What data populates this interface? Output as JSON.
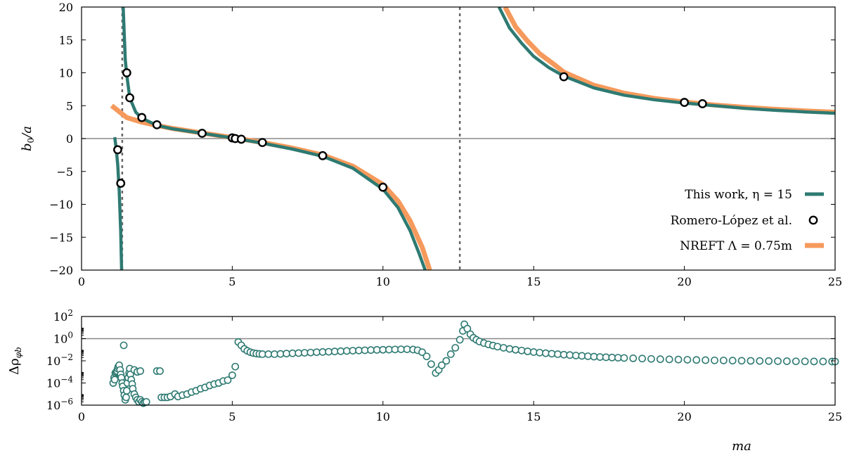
{
  "chart_data": [
    {
      "type": "line",
      "ylabel": "b0/a",
      "xlim": [
        0,
        25
      ],
      "ylim": [
        -20,
        20
      ],
      "xticks": [
        "0",
        "5",
        "10",
        "15",
        "20",
        "25"
      ],
      "yticks": [
        "20",
        "15",
        "10",
        "5",
        "0",
        "−5",
        "−10",
        "−15",
        "−20"
      ],
      "xtick_values": [
        0,
        5,
        10,
        15,
        20,
        25
      ],
      "ytick_values": [
        20,
        15,
        10,
        5,
        0,
        -5,
        -10,
        -15,
        -20
      ],
      "vertical_dashed_lines_x": [
        1.35,
        12.55
      ],
      "horizontal_line_y": 0,
      "legend_position": "bottom-right",
      "series": [
        {
          "name": "This work, η = 15",
          "style": "line",
          "color": "#2e7a72",
          "segments": [
            {
              "x": [
                1.1,
                1.15,
                1.2,
                1.25,
                1.3,
                1.33
              ],
              "y": [
                0.2,
                -1.5,
                -4.0,
                -8.0,
                -14.0,
                -20.0
              ]
            },
            {
              "x": [
                1.38,
                1.45,
                1.5,
                1.6,
                1.8,
                2.0,
                2.5,
                3.0,
                4.0,
                5.0,
                6.0,
                7.0,
                8.0,
                9.0,
                10.0,
                10.5,
                10.9,
                11.2,
                11.4
              ],
              "y": [
                20.0,
                12.0,
                9.7,
                6.2,
                4.0,
                3.1,
                2.0,
                1.5,
                0.8,
                0.1,
                -0.7,
                -1.6,
                -2.7,
                -4.5,
                -7.7,
                -10.5,
                -14.0,
                -17.5,
                -20.0
              ]
            },
            {
              "x": [
                13.85,
                14.2,
                14.6,
                15.0,
                15.5,
                16.0,
                17.0,
                18.0,
                19.0,
                20.0,
                21.0,
                22.0,
                23.0,
                24.0,
                25.0
              ],
              "y": [
                20.0,
                16.8,
                14.5,
                12.5,
                10.8,
                9.5,
                7.7,
                6.6,
                5.9,
                5.4,
                5.0,
                4.6,
                4.3,
                4.05,
                3.85
              ]
            }
          ]
        },
        {
          "name": "Romero-López et al.",
          "style": "marker",
          "points": [
            {
              "x": 1.2,
              "y": -1.7
            },
            {
              "x": 1.3,
              "y": -6.8
            },
            {
              "x": 1.5,
              "y": 10.0
            },
            {
              "x": 1.6,
              "y": 6.2
            },
            {
              "x": 2.0,
              "y": 3.2
            },
            {
              "x": 2.5,
              "y": 2.1
            },
            {
              "x": 4.0,
              "y": 0.8
            },
            {
              "x": 5.0,
              "y": 0.1
            },
            {
              "x": 5.1,
              "y": 0.0
            },
            {
              "x": 5.3,
              "y": -0.1
            },
            {
              "x": 6.0,
              "y": -0.6
            },
            {
              "x": 8.0,
              "y": -2.6
            },
            {
              "x": 10.0,
              "y": -7.4
            },
            {
              "x": 16.0,
              "y": 9.4
            },
            {
              "x": 20.0,
              "y": 5.5
            },
            {
              "x": 20.6,
              "y": 5.3
            }
          ]
        },
        {
          "name": "NREFT Λ = 0.75m",
          "style": "line",
          "color": "#f59a5c",
          "segments": [
            {
              "x": [
                1.0,
                1.5,
                2.0,
                2.5,
                3.0,
                4.0,
                5.0,
                6.0,
                7.0,
                8.0,
                9.0,
                10.0,
                10.5,
                10.9,
                11.3,
                11.55
              ],
              "y": [
                5.0,
                3.2,
                2.5,
                2.0,
                1.55,
                0.85,
                0.15,
                -0.6,
                -1.45,
                -2.5,
                -4.2,
                -7.0,
                -9.5,
                -12.5,
                -16.5,
                -20.0
              ]
            },
            {
              "x": [
                14.05,
                14.4,
                14.8,
                15.2,
                15.7,
                16.0,
                17.0,
                18.0,
                19.0,
                20.0,
                21.0,
                22.0,
                23.0,
                24.0,
                25.0
              ],
              "y": [
                20.0,
                17.0,
                14.8,
                12.9,
                11.2,
                10.1,
                8.1,
                6.9,
                6.1,
                5.55,
                5.1,
                4.75,
                4.45,
                4.2,
                4.0
              ]
            }
          ]
        }
      ]
    },
    {
      "type": "scatter",
      "xlabel": "ma",
      "ylabel": "Δρφb",
      "xlim": [
        0,
        25
      ],
      "ylog": true,
      "ylim": [
        1e-06,
        100
      ],
      "xticks": [
        "0",
        "5",
        "10",
        "15",
        "20",
        "25"
      ],
      "xtick_values": [
        0,
        5,
        10,
        15,
        20,
        25
      ],
      "ytick_values": [
        100,
        1,
        0.01,
        0.0001,
        1e-06
      ],
      "yticks": [
        {
          "base": "10",
          "exp": "2"
        },
        {
          "base": "10",
          "exp": "0"
        },
        {
          "base": "10",
          "exp": "-2"
        },
        {
          "base": "10",
          "exp": "-4"
        },
        {
          "base": "10",
          "exp": "-6"
        }
      ],
      "horizontal_line_y": 1,
      "marker_color": "#2e7a72",
      "points": [
        [
          1.05,
          0.0001
        ],
        [
          1.08,
          0.0003
        ],
        [
          1.1,
          0.0002
        ],
        [
          1.12,
          0.0008
        ],
        [
          1.15,
          0.001
        ],
        [
          1.18,
          0.0012
        ],
        [
          1.2,
          0.002
        ],
        [
          1.22,
          0.003
        ],
        [
          1.25,
          0.004
        ],
        [
          1.28,
          0.0015
        ],
        [
          1.3,
          0.0006
        ],
        [
          1.32,
          0.0003
        ],
        [
          1.35,
          0.0001
        ],
        [
          1.37,
          5e-05
        ],
        [
          1.4,
          2e-05
        ],
        [
          1.42,
          8e-06
        ],
        [
          1.45,
          3e-06
        ],
        [
          1.48,
          5e-06
        ],
        [
          1.5,
          2e-05
        ],
        [
          1.52,
          0.0001
        ],
        [
          1.55,
          0.0003
        ],
        [
          1.58,
          0.0008
        ],
        [
          1.6,
          0.002
        ],
        [
          1.62,
          0.0006
        ],
        [
          1.65,
          0.0002
        ],
        [
          1.68,
          8e-05
        ],
        [
          1.7,
          3e-05
        ],
        [
          1.75,
          1e-05
        ],
        [
          1.8,
          5e-06
        ],
        [
          1.85,
          3e-06
        ],
        [
          1.9,
          2e-06
        ],
        [
          1.95,
          3e-06
        ],
        [
          2.0,
          2e-06
        ],
        [
          2.05,
          1.5e-06
        ],
        [
          2.1,
          1.8e-06
        ],
        [
          2.15,
          2e-06
        ],
        [
          1.4,
          0.25
        ],
        [
          1.75,
          0.0015
        ],
        [
          1.85,
          0.001
        ],
        [
          1.95,
          0.0012
        ],
        [
          2.5,
          0.0012
        ],
        [
          2.6,
          0.0012
        ],
        [
          2.65,
          5e-06
        ],
        [
          2.75,
          5e-06
        ],
        [
          2.85,
          5e-06
        ],
        [
          2.95,
          6e-06
        ],
        [
          3.1,
          1e-05
        ],
        [
          3.2,
          6e-06
        ],
        [
          3.35,
          8e-06
        ],
        [
          3.5,
          1e-05
        ],
        [
          3.65,
          1.5e-05
        ],
        [
          3.8,
          2e-05
        ],
        [
          3.95,
          3e-05
        ],
        [
          4.1,
          4e-05
        ],
        [
          4.25,
          6e-05
        ],
        [
          4.4,
          8e-05
        ],
        [
          4.55,
          0.0001
        ],
        [
          4.7,
          0.00015
        ],
        [
          4.85,
          0.00018
        ],
        [
          5.0,
          0.0005
        ],
        [
          5.1,
          0.003
        ],
        [
          5.2,
          0.5
        ],
        [
          5.3,
          0.25
        ],
        [
          5.4,
          0.12
        ],
        [
          5.5,
          0.08
        ],
        [
          5.6,
          0.06
        ],
        [
          5.7,
          0.05
        ],
        [
          5.8,
          0.045
        ],
        [
          5.9,
          0.042
        ],
        [
          6.0,
          0.04
        ],
        [
          6.2,
          0.04
        ],
        [
          6.4,
          0.04
        ],
        [
          6.6,
          0.042
        ],
        [
          6.8,
          0.045
        ],
        [
          7.0,
          0.048
        ],
        [
          7.2,
          0.05
        ],
        [
          7.4,
          0.053
        ],
        [
          7.6,
          0.056
        ],
        [
          7.8,
          0.06
        ],
        [
          8.0,
          0.063
        ],
        [
          8.2,
          0.066
        ],
        [
          8.4,
          0.07
        ],
        [
          8.6,
          0.074
        ],
        [
          8.8,
          0.078
        ],
        [
          9.0,
          0.082
        ],
        [
          9.2,
          0.086
        ],
        [
          9.4,
          0.09
        ],
        [
          9.6,
          0.094
        ],
        [
          9.8,
          0.098
        ],
        [
          10.0,
          0.1
        ],
        [
          10.2,
          0.103
        ],
        [
          10.4,
          0.106
        ],
        [
          10.6,
          0.11
        ],
        [
          10.8,
          0.11
        ],
        [
          11.0,
          0.105
        ],
        [
          11.15,
          0.09
        ],
        [
          11.3,
          0.06
        ],
        [
          11.45,
          0.025
        ],
        [
          11.6,
          0.005
        ],
        [
          11.75,
          0.0008
        ],
        [
          11.85,
          0.0015
        ],
        [
          11.95,
          0.004
        ],
        [
          12.1,
          0.01
        ],
        [
          12.25,
          0.04
        ],
        [
          12.4,
          0.15
        ],
        [
          12.55,
          0.8
        ],
        [
          12.65,
          5
        ],
        [
          12.7,
          20
        ],
        [
          12.8,
          8
        ],
        [
          12.9,
          2.5
        ],
        [
          13.0,
          1.2
        ],
        [
          13.1,
          0.8
        ],
        [
          13.2,
          0.55
        ],
        [
          13.35,
          0.4
        ],
        [
          13.5,
          0.3
        ],
        [
          13.65,
          0.24
        ],
        [
          13.8,
          0.19
        ],
        [
          14.0,
          0.15
        ],
        [
          14.2,
          0.12
        ],
        [
          14.4,
          0.1
        ],
        [
          14.6,
          0.085
        ],
        [
          14.8,
          0.072
        ],
        [
          15.0,
          0.062
        ],
        [
          15.2,
          0.055
        ],
        [
          15.4,
          0.049
        ],
        [
          15.6,
          0.044
        ],
        [
          15.8,
          0.04
        ],
        [
          16.0,
          0.036
        ],
        [
          16.2,
          0.033
        ],
        [
          16.4,
          0.03
        ],
        [
          16.6,
          0.028
        ],
        [
          16.8,
          0.026
        ],
        [
          17.0,
          0.024
        ],
        [
          17.2,
          0.022
        ],
        [
          17.4,
          0.021
        ],
        [
          17.6,
          0.02
        ],
        [
          17.8,
          0.019
        ],
        [
          18.0,
          0.018
        ],
        [
          18.3,
          0.017
        ],
        [
          18.6,
          0.016
        ],
        [
          18.9,
          0.015
        ],
        [
          19.2,
          0.014
        ],
        [
          19.5,
          0.0135
        ],
        [
          19.8,
          0.013
        ],
        [
          20.1,
          0.0125
        ],
        [
          20.4,
          0.012
        ],
        [
          20.7,
          0.0115
        ],
        [
          21.0,
          0.011
        ],
        [
          21.3,
          0.0108
        ],
        [
          21.6,
          0.0105
        ],
        [
          21.9,
          0.0102
        ],
        [
          22.2,
          0.01
        ],
        [
          22.5,
          0.0098
        ],
        [
          22.8,
          0.0096
        ],
        [
          23.1,
          0.0094
        ],
        [
          23.4,
          0.0092
        ],
        [
          23.7,
          0.009
        ],
        [
          24.0,
          0.0089
        ],
        [
          24.3,
          0.0088
        ],
        [
          24.6,
          0.0087
        ],
        [
          24.9,
          0.0086
        ],
        [
          25.0,
          0.0085
        ]
      ]
    }
  ]
}
